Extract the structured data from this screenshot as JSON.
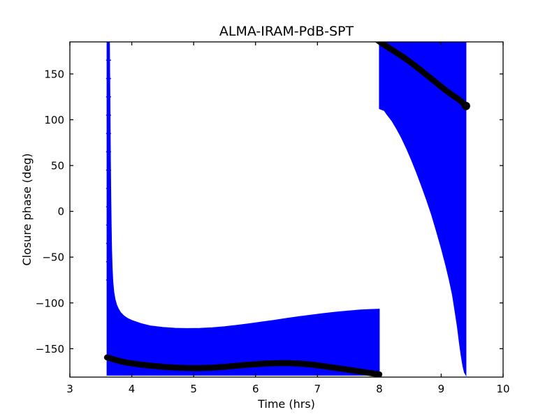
{
  "chart_data": {
    "type": "line",
    "title": "ALMA-IRAM-PdB-SPT",
    "xlabel": "Time (hrs)",
    "ylabel": "Closure phase (deg)",
    "xlim": [
      3,
      10
    ],
    "ylim": [
      -181,
      185
    ],
    "xticks": [
      3,
      4,
      5,
      6,
      7,
      8,
      9,
      10
    ],
    "xticklabels": [
      "3",
      "4",
      "5",
      "6",
      "7",
      "8",
      "9",
      "10"
    ],
    "yticks": [
      -150,
      -100,
      -50,
      0,
      50,
      100,
      150
    ],
    "yticklabels": [
      "−150",
      "−100",
      "−50",
      "0",
      "50",
      "100",
      "150"
    ],
    "grid": false,
    "legend": null,
    "colors": {
      "error_fill": "#0000ff",
      "model_line": "#000000",
      "frame": "#000000",
      "background": "#ffffff"
    },
    "series": [
      {
        "name": "error-envelope-left",
        "kind": "area",
        "fill_to": -179,
        "points": [
          [
            3.6,
            185
          ],
          [
            3.64,
            185
          ],
          [
            3.646,
            140
          ],
          [
            3.651,
            95
          ],
          [
            3.656,
            55
          ],
          [
            3.662,
            20
          ],
          [
            3.668,
            -15
          ],
          [
            3.675,
            -42
          ],
          [
            3.684,
            -62
          ],
          [
            3.695,
            -77
          ],
          [
            3.71,
            -88
          ],
          [
            3.73,
            -96
          ],
          [
            3.755,
            -102
          ],
          [
            3.785,
            -106.5
          ],
          [
            3.82,
            -110.5
          ],
          [
            3.87,
            -114
          ],
          [
            3.93,
            -116.8
          ],
          [
            4.0,
            -119
          ],
          [
            4.15,
            -122.5
          ],
          [
            4.3,
            -125
          ],
          [
            4.5,
            -126.7
          ],
          [
            4.7,
            -127.6
          ],
          [
            4.9,
            -127.9
          ],
          [
            5.1,
            -127.7
          ],
          [
            5.3,
            -127
          ],
          [
            5.5,
            -125.9
          ],
          [
            5.7,
            -124.4
          ],
          [
            5.9,
            -122.7
          ],
          [
            6.1,
            -120.8
          ],
          [
            6.3,
            -118.9
          ],
          [
            6.5,
            -116.9
          ],
          [
            6.7,
            -115
          ],
          [
            6.9,
            -113.2
          ],
          [
            7.1,
            -111.5
          ],
          [
            7.3,
            -110
          ],
          [
            7.5,
            -108.7
          ],
          [
            7.7,
            -107.6
          ],
          [
            7.85,
            -107.1
          ],
          [
            8.0,
            -106.7
          ]
        ],
        "caps": {
          "x": 3.625,
          "halfwidth_hr": 0.04,
          "degs": [
            165,
            145,
            125,
            105,
            85,
            65,
            45,
            25,
            5,
            -15,
            -35,
            -55,
            -75
          ]
        }
      },
      {
        "name": "error-envelope-right",
        "kind": "area",
        "fill_to": 185,
        "points": [
          [
            8.0,
            112
          ],
          [
            8.08,
            110
          ],
          [
            8.12,
            106
          ],
          [
            8.2,
            99
          ],
          [
            8.28,
            90
          ],
          [
            8.36,
            80
          ],
          [
            8.44,
            68.5
          ],
          [
            8.52,
            56
          ],
          [
            8.6,
            42.5
          ],
          [
            8.68,
            28
          ],
          [
            8.76,
            13
          ],
          [
            8.84,
            -3
          ],
          [
            8.92,
            -21
          ],
          [
            9.0,
            -40
          ],
          [
            9.07,
            -58
          ],
          [
            9.13,
            -75
          ],
          [
            9.18,
            -91
          ],
          [
            9.22,
            -108
          ],
          [
            9.26,
            -126
          ],
          [
            9.29,
            -142
          ],
          [
            9.32,
            -157
          ],
          [
            9.35,
            -169
          ],
          [
            9.375,
            -176
          ],
          [
            9.4,
            -179
          ]
        ]
      },
      {
        "name": "model-phase-left",
        "kind": "line",
        "points": [
          [
            3.6,
            -159.5
          ],
          [
            3.75,
            -162.5
          ],
          [
            3.9,
            -165
          ],
          [
            4.1,
            -167
          ],
          [
            4.3,
            -168.5
          ],
          [
            4.5,
            -169.7
          ],
          [
            4.7,
            -170.6
          ],
          [
            4.9,
            -171.1
          ],
          [
            5.1,
            -171.2
          ],
          [
            5.3,
            -170.7
          ],
          [
            5.5,
            -169.8
          ],
          [
            5.7,
            -168.6
          ],
          [
            5.9,
            -167.4
          ],
          [
            6.1,
            -166.4
          ],
          [
            6.3,
            -165.8
          ],
          [
            6.5,
            -165.7
          ],
          [
            6.7,
            -166.2
          ],
          [
            6.9,
            -167.3
          ],
          [
            7.1,
            -169
          ],
          [
            7.3,
            -171
          ],
          [
            7.5,
            -173
          ],
          [
            7.7,
            -175
          ],
          [
            7.85,
            -176.6
          ],
          [
            8.0,
            -178
          ]
        ]
      },
      {
        "name": "model-phase-right",
        "kind": "line",
        "points": [
          [
            7.97,
            187
          ],
          [
            8.05,
            183
          ],
          [
            8.12,
            180
          ],
          [
            8.2,
            176.5
          ],
          [
            8.3,
            172.3
          ],
          [
            8.4,
            167.8
          ],
          [
            8.5,
            163
          ],
          [
            8.6,
            157.8
          ],
          [
            8.7,
            152.4
          ],
          [
            8.8,
            147
          ],
          [
            8.9,
            141.5
          ],
          [
            9.0,
            136
          ],
          [
            9.1,
            130.8
          ],
          [
            9.2,
            126
          ],
          [
            9.3,
            121.5
          ],
          [
            9.4,
            115
          ]
        ]
      },
      {
        "name": "model-endpoint",
        "kind": "marker",
        "x": 9.4,
        "y": 115
      }
    ]
  }
}
